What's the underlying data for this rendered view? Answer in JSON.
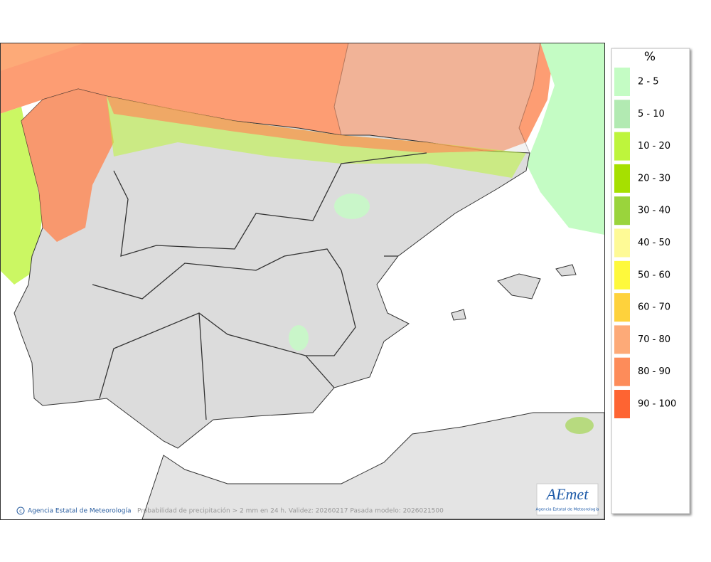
{
  "map": {
    "copyright": "Agencia Estatal de Meteorología",
    "caption": "Probabilidad de precipitación > 2 mm en 24 h. Validez: 20260217 Pasada modelo: 2026021500"
  },
  "legend": {
    "title": "%",
    "items": [
      {
        "label": "2 - 5",
        "color": "#c4fcc4"
      },
      {
        "label": "5 - 10",
        "color": "#b2eab2"
      },
      {
        "label": "10 - 20",
        "color": "#bef53c"
      },
      {
        "label": "20 - 30",
        "color": "#a6e000"
      },
      {
        "label": "30 - 40",
        "color": "#9ad43c"
      },
      {
        "label": "40 - 50",
        "color": "#fefa96"
      },
      {
        "label": "50 - 60",
        "color": "#fef93c"
      },
      {
        "label": "60 - 70",
        "color": "#fed23c"
      },
      {
        "label": "70 - 80",
        "color": "#fdaa78"
      },
      {
        "label": "80 - 90",
        "color": "#fd8c5a"
      },
      {
        "label": "90 - 100",
        "color": "#fe6432"
      }
    ]
  },
  "logo": {
    "name": "AEmet",
    "subtitle": "Agencia Estatal de Meteorología"
  }
}
